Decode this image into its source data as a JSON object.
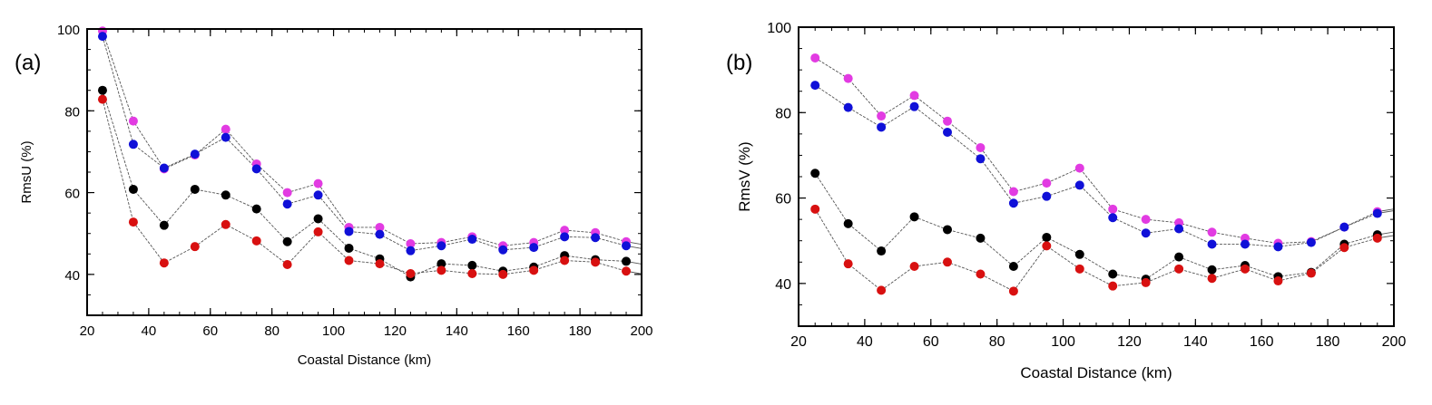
{
  "colors": {
    "magenta": "#e23be2",
    "blue": "#1010d8",
    "black": "#000000",
    "red": "#d81010",
    "line": "#555555"
  },
  "chart_data": [
    {
      "type": "scatter",
      "panel_label": "(a)",
      "xlabel": "Coastal Distance (km)",
      "ylabel": "RmsU (%)",
      "xlim": [
        20,
        200
      ],
      "ylim": [
        30,
        100
      ],
      "xticks": [
        20,
        40,
        60,
        80,
        100,
        120,
        140,
        160,
        180,
        200
      ],
      "yticks": [
        40,
        60,
        80,
        100
      ],
      "grid": false,
      "legend": "none",
      "x": [
        25,
        35,
        45,
        55,
        65,
        75,
        85,
        95,
        105,
        115,
        125,
        135,
        145,
        155,
        165,
        175,
        185,
        195
      ],
      "series": [
        {
          "color": "magenta",
          "values": [
            99.5,
            77.5,
            65.8,
            69.2,
            75.5,
            67.0,
            60.0,
            62.2,
            51.5,
            51.5,
            47.5,
            47.8,
            49.2,
            47.0,
            47.8,
            50.8,
            50.2,
            48.0
          ]
        },
        {
          "color": "blue",
          "values": [
            98.2,
            71.8,
            66.0,
            69.4,
            73.5,
            65.8,
            57.2,
            59.4,
            50.5,
            49.8,
            45.8,
            47.0,
            48.6,
            46.0,
            46.6,
            49.2,
            49.0,
            47.0
          ]
        },
        {
          "color": "black",
          "values": [
            85.0,
            60.8,
            52.0,
            60.8,
            59.4,
            56.0,
            48.0,
            53.6,
            46.4,
            43.8,
            39.4,
            42.6,
            42.2,
            40.8,
            41.8,
            44.6,
            43.6,
            43.2
          ]
        },
        {
          "color": "red",
          "values": [
            82.8,
            52.8,
            42.8,
            46.8,
            52.2,
            48.2,
            42.4,
            50.4,
            43.4,
            42.6,
            40.2,
            41.0,
            40.2,
            40.0,
            41.0,
            43.4,
            43.0,
            40.8
          ]
        }
      ]
    },
    {
      "type": "scatter",
      "panel_label": "(b)",
      "xlabel": "Coastal Distance (km)",
      "ylabel": "RmsV (%)",
      "xlim": [
        20,
        200
      ],
      "ylim": [
        30,
        100
      ],
      "xticks": [
        20,
        40,
        60,
        80,
        100,
        120,
        140,
        160,
        180,
        200
      ],
      "yticks": [
        40,
        60,
        80,
        100
      ],
      "grid": false,
      "legend": "none",
      "x": [
        25,
        35,
        45,
        55,
        65,
        75,
        85,
        95,
        105,
        115,
        125,
        135,
        145,
        155,
        165,
        175,
        185,
        195
      ],
      "series": [
        {
          "color": "magenta",
          "values": [
            92.8,
            88.0,
            79.2,
            84.0,
            78.0,
            71.8,
            61.5,
            63.5,
            67.0,
            57.4,
            55.0,
            54.2,
            52.0,
            50.6,
            49.4,
            49.8,
            53.2,
            56.8
          ]
        },
        {
          "color": "blue",
          "values": [
            86.4,
            81.2,
            76.6,
            81.4,
            75.4,
            69.2,
            58.8,
            60.4,
            63.0,
            55.4,
            51.8,
            52.8,
            49.2,
            49.2,
            48.6,
            49.6,
            53.2,
            56.4
          ]
        },
        {
          "color": "black",
          "values": [
            65.8,
            54.0,
            47.6,
            55.6,
            52.6,
            50.6,
            44.0,
            50.8,
            46.8,
            42.2,
            41.0,
            46.2,
            43.2,
            44.2,
            41.6,
            42.6,
            49.2,
            51.4
          ]
        },
        {
          "color": "red",
          "values": [
            57.4,
            44.6,
            38.4,
            44.0,
            45.0,
            42.2,
            38.2,
            48.8,
            43.4,
            39.4,
            40.2,
            43.4,
            41.2,
            43.4,
            40.6,
            42.4,
            48.4,
            50.6
          ]
        }
      ]
    }
  ]
}
